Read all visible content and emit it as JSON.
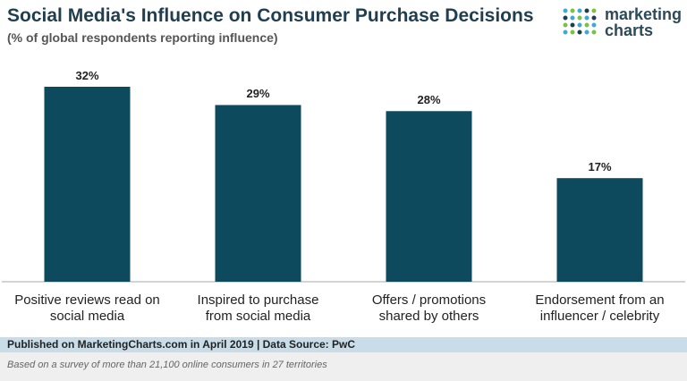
{
  "chart_data": {
    "type": "bar",
    "title": "Social Media's Influence on Consumer Purchase Decisions",
    "subtitle": "(% of global respondents reporting influence)",
    "categories": [
      "Positive reviews read on social media",
      "Inspired to purchase from social media",
      "Offers / promotions shared by others",
      "Endorsement from an influencer / celebrity"
    ],
    "values": [
      32,
      29,
      28,
      17
    ],
    "value_labels": [
      "32%",
      "29%",
      "28%",
      "17%"
    ],
    "color": "#0d4a5e"
  },
  "logo": {
    "line1": "marketing",
    "line2": "charts"
  },
  "footer": {
    "source": "Published on MarketingCharts.com in April 2019 | Data Source: PwC",
    "note": "Based on a survey of more than 21,100 online consumers in 27 territories"
  }
}
